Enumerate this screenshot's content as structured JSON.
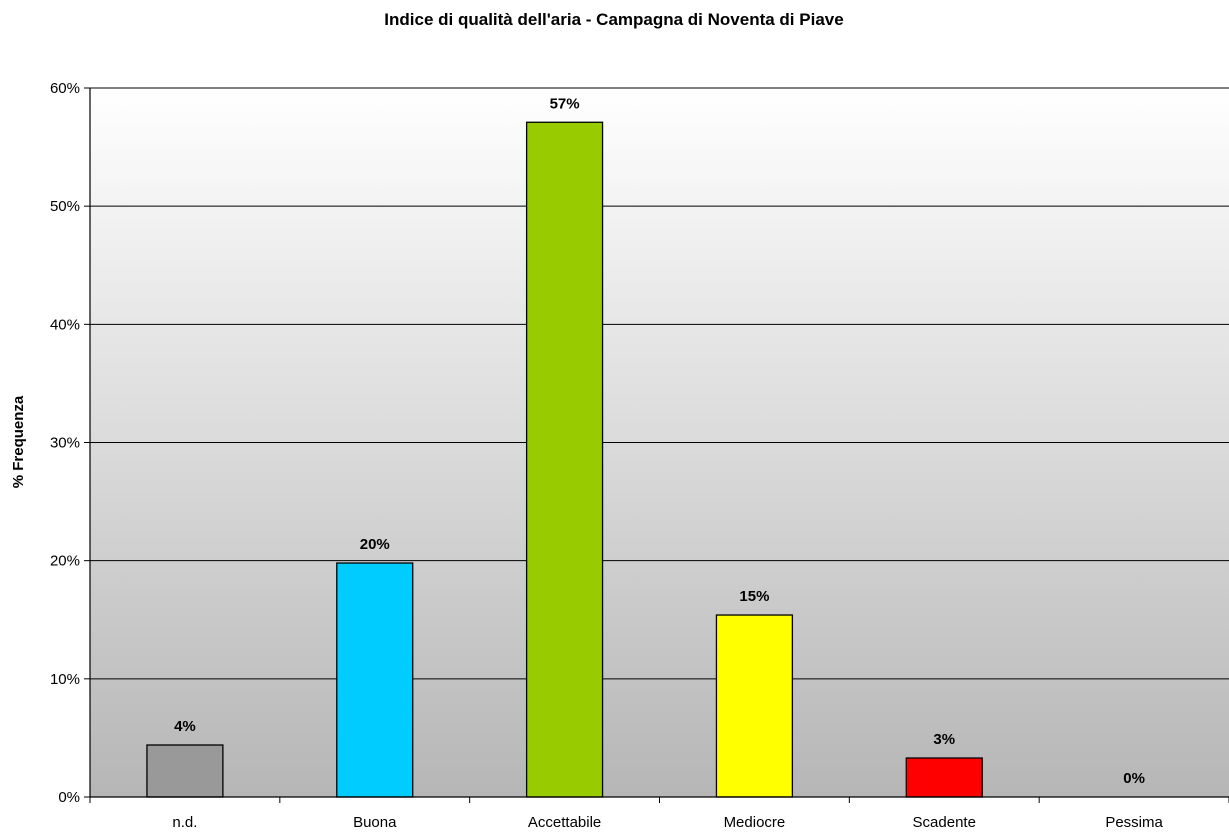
{
  "chart_data": {
    "type": "bar",
    "title": "Indice di qualità dell'aria - Campagna di Noventa di Piave",
    "xlabel": "",
    "ylabel": "% Frequenza",
    "categories": [
      "n.d.",
      "Buona",
      "Accettabile",
      "Mediocre",
      "Scadente",
      "Pessima"
    ],
    "values": [
      4.4,
      19.8,
      57.1,
      15.4,
      3.3,
      0
    ],
    "data_labels": [
      "4%",
      "20%",
      "57%",
      "15%",
      "3%",
      "0%"
    ],
    "bar_colors": [
      "#999999",
      "#00ccff",
      "#99cc00",
      "#ffff00",
      "#ff0000",
      "#808080"
    ],
    "ylim": [
      0,
      60
    ],
    "yticks": [
      0,
      10,
      20,
      30,
      40,
      50,
      60
    ],
    "ytick_labels": [
      "0%",
      "10%",
      "20%",
      "30%",
      "40%",
      "50%",
      "60%"
    ],
    "grid": true,
    "legend": "none",
    "background": "gradient white to gray"
  }
}
